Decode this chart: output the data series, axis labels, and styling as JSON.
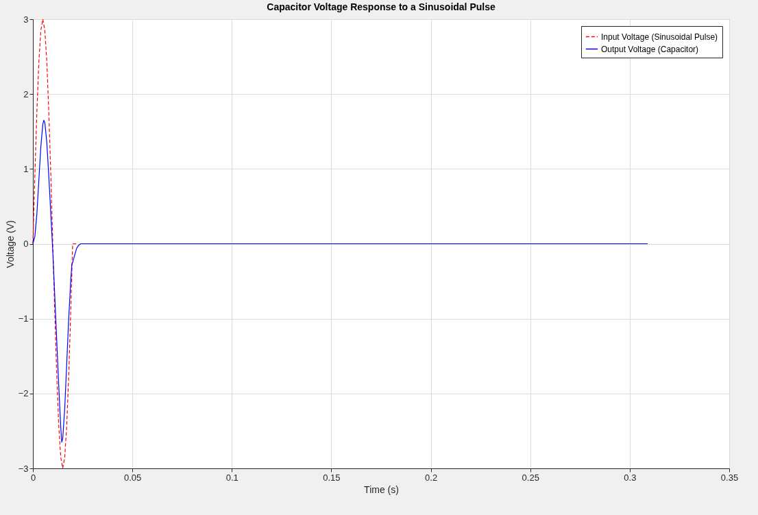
{
  "chart_data": {
    "type": "line",
    "title": "Capacitor Voltage Response to a Sinusoidal Pulse",
    "xlabel": "Time (s)",
    "ylabel": "Voltage (V)",
    "xlim": [
      0,
      0.35
    ],
    "xticks": [
      0,
      0.05,
      0.1,
      0.15,
      0.2,
      0.25,
      0.3,
      0.35
    ],
    "ylim": [
      -3,
      3
    ],
    "yticks": [
      -3,
      -2,
      -1,
      0,
      1,
      2,
      3
    ],
    "grid": true,
    "legend": "top right",
    "marker": "none",
    "series": [
      {
        "name": "Input Voltage (Sinusoidal Pulse)",
        "color": "#ff0000",
        "line_style": "dashed",
        "x": [
          0,
          0.001,
          0.002,
          0.003,
          0.004,
          0.005,
          0.006,
          0.007,
          0.008,
          0.009,
          0.01,
          0.011,
          0.012,
          0.013,
          0.014,
          0.015,
          0.016,
          0.017,
          0.018,
          0.019,
          0.02,
          0.022
        ],
        "values": [
          0,
          0.93,
          1.76,
          2.43,
          2.85,
          3,
          2.85,
          2.43,
          1.76,
          0.93,
          0,
          -0.93,
          -1.76,
          -2.43,
          -2.85,
          -3,
          -2.85,
          -2.43,
          -1.76,
          -0.93,
          0,
          0
        ]
      },
      {
        "name": "Output Voltage (Capacitor)",
        "color": "#0000ff",
        "line_style": "solid",
        "x": [
          0,
          0.001,
          0.002,
          0.003,
          0.004,
          0.005,
          0.0055,
          0.006,
          0.007,
          0.008,
          0.009,
          0.01,
          0.011,
          0.012,
          0.013,
          0.014,
          0.0145,
          0.015,
          0.016,
          0.017,
          0.018,
          0.019,
          0.0196,
          0.02,
          0.021,
          0.022,
          0.023,
          0.024,
          0.309
        ],
        "values": [
          0,
          0.1,
          0.4,
          0.85,
          1.3,
          1.6,
          1.65,
          1.62,
          1.35,
          0.9,
          0.4,
          -0.1,
          -0.7,
          -1.3,
          -1.9,
          -2.45,
          -2.65,
          -2.6,
          -2.2,
          -1.6,
          -1.0,
          -0.5,
          -0.27,
          -0.25,
          -0.15,
          -0.06,
          -0.02,
          0,
          0
        ]
      }
    ]
  }
}
